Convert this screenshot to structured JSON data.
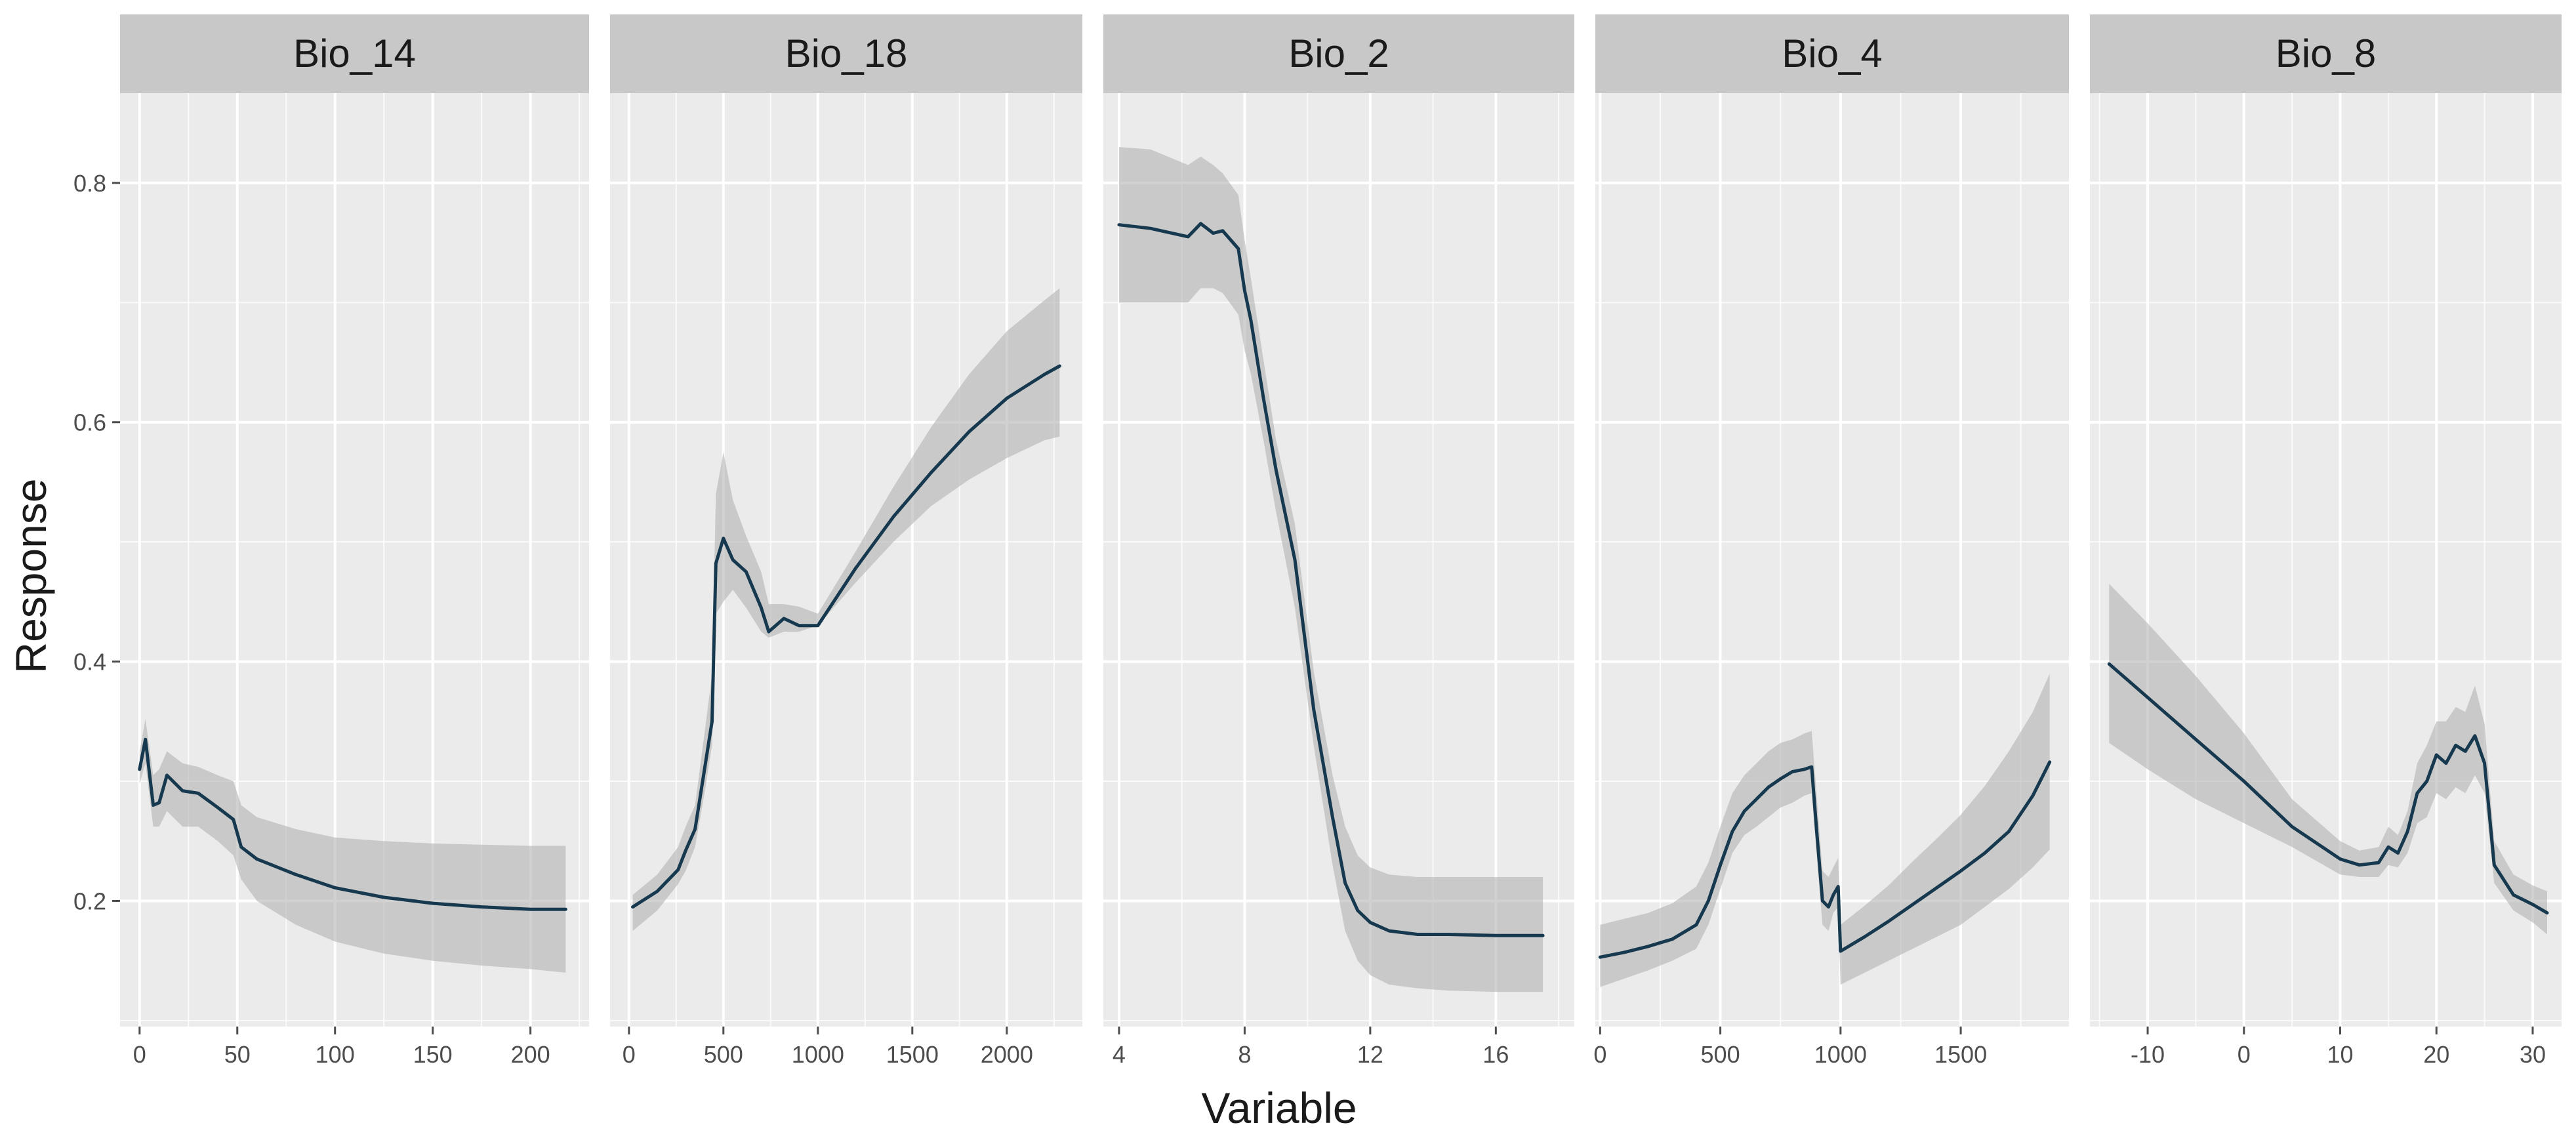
{
  "chart_data": {
    "type": "line",
    "layout": "faceted-small-multiples",
    "xlabel": "Variable",
    "ylabel": "Response",
    "shared_y": true,
    "ylim": [
      0.095,
      0.875
    ],
    "yticks": [
      0.2,
      0.4,
      0.6,
      0.8
    ],
    "yticklabels": [
      "0.2",
      "0.4",
      "0.6",
      "0.8"
    ],
    "colors": {
      "line": "#17394f",
      "band": "#b4b4b4",
      "panel": "#ebebeb",
      "strip": "#c8c8c8"
    },
    "panels": [
      {
        "name": "Bio_14",
        "xlim": [
          -10,
          230
        ],
        "xticks": [
          0,
          50,
          100,
          150,
          200
        ],
        "xticklabels": [
          "0",
          "50",
          "100",
          "150",
          "200"
        ],
        "x": [
          0,
          3,
          7,
          10,
          14,
          22,
          30,
          40,
          48,
          52,
          60,
          80,
          100,
          125,
          150,
          175,
          200,
          218
        ],
        "y": [
          0.31,
          0.335,
          0.28,
          0.282,
          0.305,
          0.292,
          0.29,
          0.278,
          0.268,
          0.245,
          0.235,
          0.222,
          0.211,
          0.203,
          0.198,
          0.195,
          0.193,
          0.193
        ],
        "lower": [
          0.298,
          0.315,
          0.262,
          0.262,
          0.275,
          0.262,
          0.262,
          0.25,
          0.238,
          0.218,
          0.2,
          0.18,
          0.166,
          0.156,
          0.15,
          0.146,
          0.143,
          0.14
        ],
        "upper": [
          0.325,
          0.352,
          0.305,
          0.31,
          0.325,
          0.315,
          0.312,
          0.305,
          0.3,
          0.28,
          0.27,
          0.26,
          0.253,
          0.25,
          0.248,
          0.247,
          0.246,
          0.246
        ]
      },
      {
        "name": "Bio_18",
        "xlim": [
          -100,
          2400
        ],
        "xticks": [
          0,
          500,
          1000,
          1500,
          2000
        ],
        "xticklabels": [
          "0",
          "500",
          "1000",
          "1500",
          "2000"
        ],
        "x": [
          20,
          150,
          260,
          300,
          350,
          400,
          440,
          460,
          500,
          550,
          620,
          700,
          740,
          820,
          900,
          1000,
          1200,
          1400,
          1600,
          1800,
          2000,
          2200,
          2280
        ],
        "y": [
          0.195,
          0.208,
          0.226,
          0.242,
          0.26,
          0.31,
          0.35,
          0.482,
          0.503,
          0.485,
          0.475,
          0.445,
          0.425,
          0.436,
          0.43,
          0.43,
          0.478,
          0.521,
          0.558,
          0.592,
          0.62,
          0.64,
          0.647
        ],
        "lower": [
          0.175,
          0.192,
          0.214,
          0.225,
          0.245,
          0.29,
          0.33,
          0.44,
          0.45,
          0.46,
          0.445,
          0.425,
          0.42,
          0.425,
          0.425,
          0.43,
          0.466,
          0.5,
          0.53,
          0.552,
          0.57,
          0.585,
          0.588
        ],
        "upper": [
          0.205,
          0.222,
          0.245,
          0.262,
          0.28,
          0.34,
          0.39,
          0.54,
          0.575,
          0.535,
          0.505,
          0.475,
          0.448,
          0.448,
          0.446,
          0.44,
          0.492,
          0.546,
          0.596,
          0.64,
          0.676,
          0.702,
          0.712
        ]
      },
      {
        "name": "Bio_2",
        "xlim": [
          3.5,
          18.5
        ],
        "xticks": [
          4,
          8,
          12,
          16
        ],
        "xticklabels": [
          "4",
          "8",
          "12",
          "16"
        ],
        "x": [
          4.0,
          5.0,
          6.2,
          6.6,
          7.0,
          7.3,
          7.8,
          8.0,
          8.2,
          8.6,
          9.0,
          9.6,
          10.2,
          10.8,
          11.2,
          11.6,
          12.0,
          12.6,
          13.5,
          14.5,
          16.0,
          17.5
        ],
        "y": [
          0.765,
          0.762,
          0.755,
          0.766,
          0.758,
          0.76,
          0.745,
          0.71,
          0.685,
          0.62,
          0.56,
          0.485,
          0.36,
          0.27,
          0.215,
          0.192,
          0.182,
          0.175,
          0.172,
          0.172,
          0.171,
          0.171
        ],
        "lower": [
          0.7,
          0.7,
          0.7,
          0.712,
          0.712,
          0.708,
          0.69,
          0.66,
          0.64,
          0.585,
          0.525,
          0.445,
          0.33,
          0.23,
          0.175,
          0.15,
          0.138,
          0.13,
          0.127,
          0.125,
          0.124,
          0.124
        ],
        "upper": [
          0.83,
          0.828,
          0.815,
          0.822,
          0.815,
          0.808,
          0.79,
          0.752,
          0.72,
          0.652,
          0.585,
          0.515,
          0.392,
          0.305,
          0.262,
          0.238,
          0.228,
          0.222,
          0.22,
          0.22,
          0.22,
          0.22
        ]
      },
      {
        "name": "Bio_4",
        "xlim": [
          -20,
          1950
        ],
        "xticks": [
          0,
          500,
          1000,
          1500
        ],
        "xticklabels": [
          "0",
          "500",
          "1000",
          "1500"
        ],
        "x": [
          0,
          100,
          200,
          300,
          400,
          450,
          500,
          550,
          600,
          650,
          700,
          750,
          800,
          850,
          880,
          900,
          925,
          950,
          970,
          990,
          1000,
          1100,
          1200,
          1300,
          1400,
          1500,
          1600,
          1700,
          1800,
          1870
        ],
        "y": [
          0.153,
          0.157,
          0.162,
          0.168,
          0.18,
          0.2,
          0.23,
          0.258,
          0.275,
          0.285,
          0.295,
          0.302,
          0.308,
          0.31,
          0.312,
          0.26,
          0.2,
          0.195,
          0.205,
          0.212,
          0.158,
          0.17,
          0.183,
          0.197,
          0.211,
          0.225,
          0.24,
          0.258,
          0.288,
          0.316
        ],
        "lower": [
          0.128,
          0.135,
          0.142,
          0.15,
          0.16,
          0.18,
          0.21,
          0.24,
          0.255,
          0.262,
          0.27,
          0.278,
          0.282,
          0.288,
          0.29,
          0.24,
          0.18,
          0.175,
          0.19,
          0.195,
          0.13,
          0.14,
          0.15,
          0.16,
          0.17,
          0.18,
          0.195,
          0.21,
          0.228,
          0.243
        ],
        "upper": [
          0.18,
          0.185,
          0.19,
          0.198,
          0.212,
          0.232,
          0.262,
          0.29,
          0.305,
          0.315,
          0.325,
          0.332,
          0.335,
          0.34,
          0.342,
          0.29,
          0.225,
          0.22,
          0.228,
          0.236,
          0.18,
          0.196,
          0.213,
          0.233,
          0.252,
          0.272,
          0.296,
          0.325,
          0.358,
          0.39
        ]
      },
      {
        "name": "Bio_8",
        "xlim": [
          -16,
          33
        ],
        "xticks": [
          -10,
          0,
          10,
          20,
          30
        ],
        "xticklabels": [
          "-10",
          "0",
          "10",
          "20",
          "30"
        ],
        "x": [
          -14,
          -10,
          -5,
          0,
          5,
          10,
          12,
          14,
          15,
          16,
          17,
          18,
          19,
          20,
          21,
          22,
          23,
          24,
          25,
          26,
          28,
          30,
          31.5
        ],
        "y": [
          0.398,
          0.37,
          0.335,
          0.3,
          0.262,
          0.235,
          0.23,
          0.232,
          0.245,
          0.24,
          0.258,
          0.29,
          0.3,
          0.322,
          0.315,
          0.33,
          0.325,
          0.338,
          0.315,
          0.23,
          0.205,
          0.197,
          0.19
        ],
        "lower": [
          0.332,
          0.31,
          0.285,
          0.265,
          0.245,
          0.222,
          0.22,
          0.22,
          0.23,
          0.228,
          0.24,
          0.265,
          0.27,
          0.29,
          0.285,
          0.295,
          0.29,
          0.305,
          0.29,
          0.215,
          0.192,
          0.182,
          0.172
        ],
        "upper": [
          0.465,
          0.432,
          0.388,
          0.34,
          0.285,
          0.25,
          0.242,
          0.245,
          0.262,
          0.255,
          0.275,
          0.315,
          0.33,
          0.35,
          0.35,
          0.362,
          0.358,
          0.38,
          0.348,
          0.25,
          0.222,
          0.213,
          0.208
        ]
      }
    ]
  }
}
